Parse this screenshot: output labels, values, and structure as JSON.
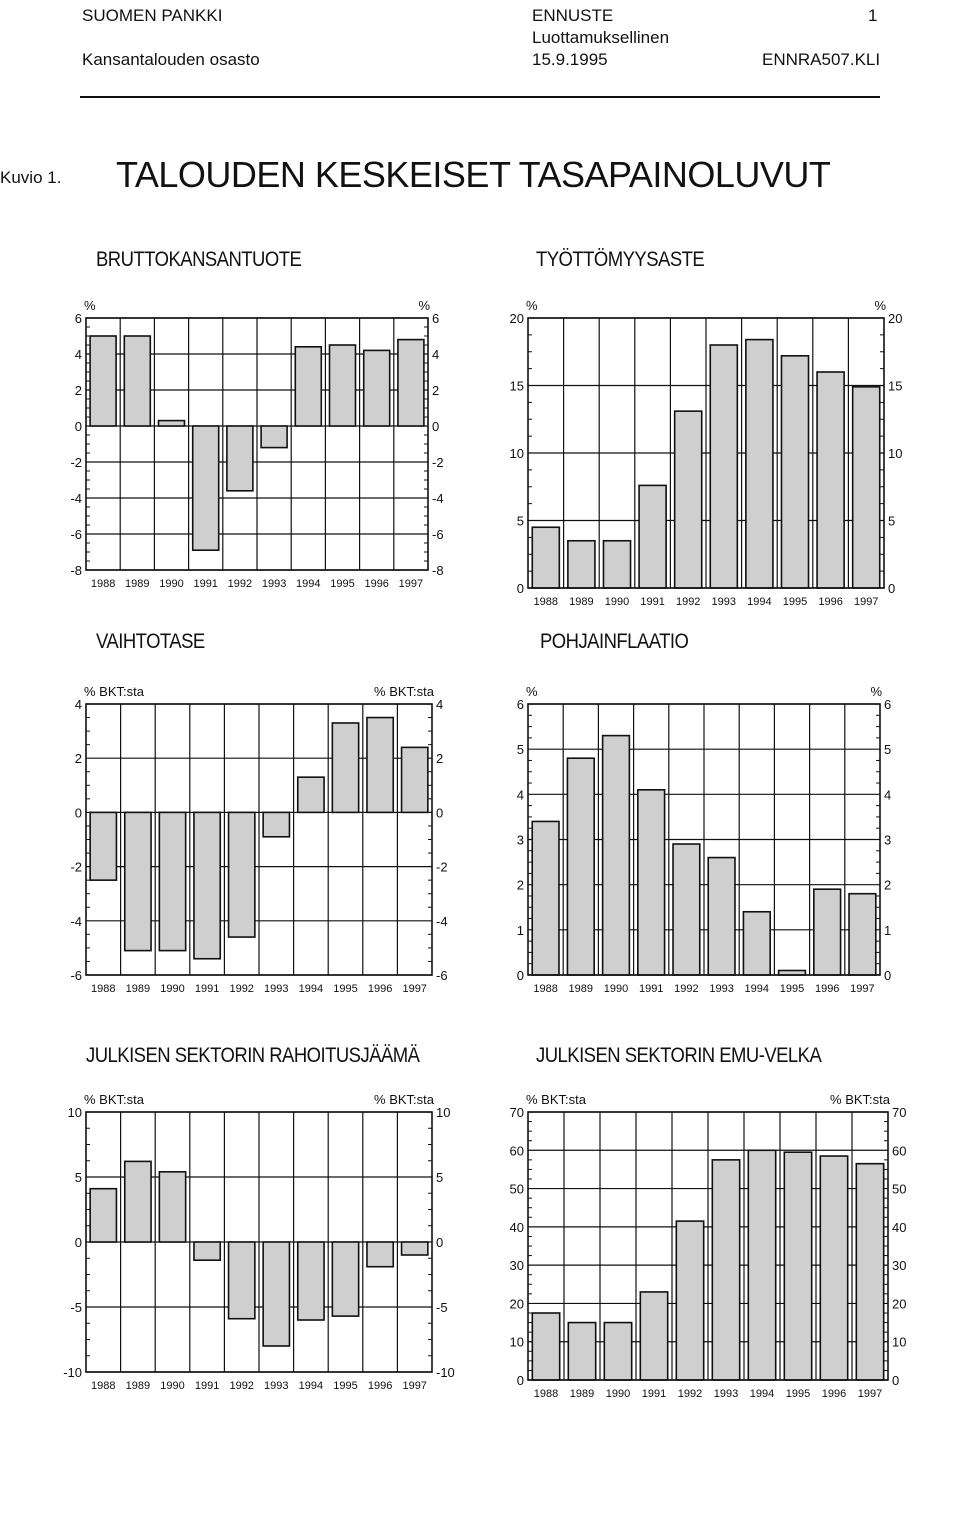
{
  "header": {
    "org": "SUOMEN PANKKI",
    "dept": "Kansantalouden osasto",
    "doc_type": "ENNUSTE",
    "confidential": "Luottamuksellinen",
    "date": "15.9.1995",
    "page": "1",
    "file": "ENNRA507.KLI"
  },
  "figure": {
    "label": "Kuvio 1.",
    "title": "TALOUDEN KESKEISET TASAPAINOLUVUT"
  },
  "colors": {
    "bar_fill": "#cfcfcf",
    "grid": "#111111"
  },
  "chart_data": [
    {
      "type": "bar",
      "title": "BRUTTOKANSANTUOTE",
      "unit_left": "%",
      "unit_right": "%",
      "categories": [
        "1988",
        "1989",
        "1990",
        "1991",
        "1992",
        "1993",
        "1994",
        "1995",
        "1996",
        "1997"
      ],
      "values": [
        5.0,
        5.0,
        0.3,
        -6.9,
        -3.6,
        -1.2,
        4.4,
        4.5,
        4.2,
        4.8
      ],
      "ylim": [
        -8,
        6
      ],
      "yticks": [
        -8,
        -6,
        -4,
        -2,
        0,
        2,
        4,
        6
      ]
    },
    {
      "type": "bar",
      "title": "TYÖTTÖMYYSASTE",
      "unit_left": "%",
      "unit_right": "%",
      "categories": [
        "1988",
        "1989",
        "1990",
        "1991",
        "1992",
        "1993",
        "1994",
        "1995",
        "1996",
        "1997"
      ],
      "values": [
        4.5,
        3.5,
        3.5,
        7.6,
        13.1,
        18.0,
        18.4,
        17.2,
        16.0,
        14.9
      ],
      "ylim": [
        0,
        20
      ],
      "yticks": [
        0,
        5,
        10,
        15,
        20
      ]
    },
    {
      "type": "bar",
      "title": "VAIHTOTASE",
      "unit_left": "% BKT:sta",
      "unit_right": "% BKT:sta",
      "categories": [
        "1988",
        "1989",
        "1990",
        "1991",
        "1992",
        "1993",
        "1994",
        "1995",
        "1996",
        "1997"
      ],
      "values": [
        -2.5,
        -5.1,
        -5.1,
        -5.4,
        -4.6,
        -0.9,
        1.3,
        3.3,
        3.5,
        2.4
      ],
      "ylim": [
        -6,
        4
      ],
      "yticks": [
        -6,
        -4,
        -2,
        0,
        2,
        4
      ]
    },
    {
      "type": "bar",
      "title": "POHJAINFLAATIO",
      "unit_left": "%",
      "unit_right": "%",
      "categories": [
        "1988",
        "1989",
        "1990",
        "1991",
        "1992",
        "1993",
        "1994",
        "1995",
        "1996",
        "1997"
      ],
      "values": [
        3.4,
        4.8,
        5.3,
        4.1,
        2.9,
        2.6,
        1.4,
        0.1,
        1.9,
        1.8
      ],
      "ylim": [
        0,
        6
      ],
      "yticks": [
        0,
        1,
        2,
        3,
        4,
        5,
        6
      ]
    },
    {
      "type": "bar",
      "title": "JULKISEN SEKTORIN RAHOITUSJÄÄMÄ",
      "unit_left": "% BKT:sta",
      "unit_right": "% BKT:sta",
      "categories": [
        "1988",
        "1989",
        "1990",
        "1991",
        "1992",
        "1993",
        "1994",
        "1995",
        "1996",
        "1997"
      ],
      "values": [
        4.1,
        6.2,
        5.4,
        -1.4,
        -5.9,
        -8.0,
        -6.0,
        -5.7,
        -1.9,
        -1.0
      ],
      "ylim": [
        -10,
        10
      ],
      "yticks": [
        -10,
        -5,
        0,
        5,
        10
      ]
    },
    {
      "type": "bar",
      "title": "JULKISEN SEKTORIN EMU-VELKA",
      "unit_left": "% BKT:sta",
      "unit_right": "% BKT:sta",
      "categories": [
        "1988",
        "1989",
        "1990",
        "1991",
        "1992",
        "1993",
        "1994",
        "1995",
        "1996",
        "1997"
      ],
      "values": [
        17.5,
        15.0,
        15.0,
        23.0,
        41.5,
        57.5,
        60.0,
        59.5,
        58.5,
        56.5
      ],
      "ylim": [
        0,
        70
      ],
      "yticks": [
        0,
        10,
        20,
        30,
        40,
        50,
        60,
        70
      ]
    }
  ]
}
